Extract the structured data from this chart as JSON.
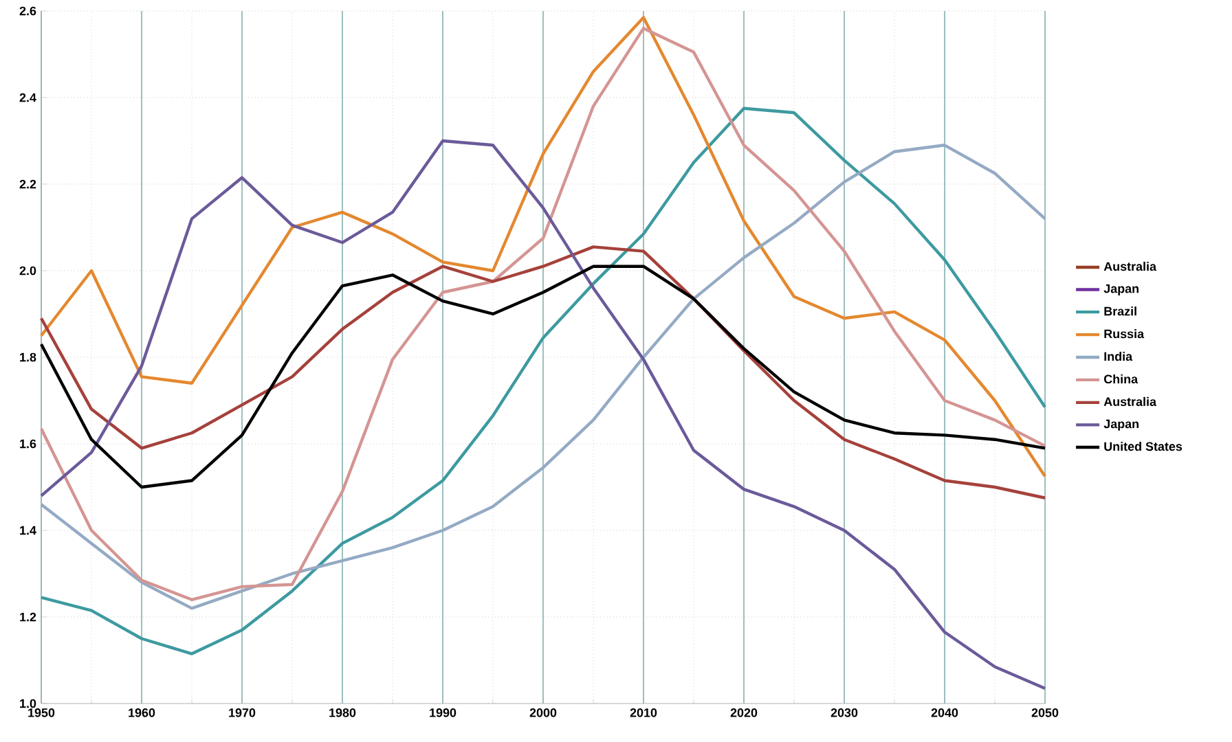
{
  "chart_data": {
    "type": "line",
    "x": [
      1950,
      1955,
      1960,
      1965,
      1970,
      1975,
      1980,
      1985,
      1990,
      1995,
      2000,
      2005,
      2010,
      2015,
      2020,
      2025,
      2030,
      2035,
      2040,
      2045,
      2050
    ],
    "xlim": [
      1950,
      2050
    ],
    "xticks": [
      1950,
      1960,
      1970,
      1980,
      1990,
      2000,
      2010,
      2020,
      2030,
      2040,
      2050
    ],
    "ylim": [
      1.0,
      2.6
    ],
    "yticks": [
      {
        "value": 1.0,
        "label": "1.0"
      },
      1.2,
      1.4,
      1.6,
      1.8,
      {
        "value": 2.0,
        "label": "2.0"
      },
      2.2,
      2.4,
      2.6
    ],
    "grid": true,
    "legend": "right",
    "marker": "none",
    "line_style": "solid",
    "series": [
      {
        "name": "Australia",
        "color": "#953f25",
        "values": [
          null,
          null,
          null,
          null,
          null,
          null,
          null,
          null,
          null,
          null,
          null,
          null,
          null,
          null,
          null,
          null,
          null,
          null,
          null,
          null,
          null
        ]
      },
      {
        "name": "Japan",
        "color": "#7030a0",
        "values": [
          null,
          null,
          null,
          null,
          null,
          null,
          null,
          null,
          null,
          null,
          null,
          null,
          null,
          null,
          null,
          null,
          null,
          null,
          null,
          null,
          null
        ]
      },
      {
        "name": "Brazil",
        "color": "#3d9aa0",
        "values": [
          1.245,
          1.215,
          1.15,
          1.115,
          1.17,
          1.26,
          1.37,
          1.43,
          1.515,
          1.665,
          1.845,
          1.97,
          2.085,
          2.25,
          2.375,
          2.365,
          2.255,
          2.155,
          2.025,
          1.86,
          1.685
        ]
      },
      {
        "name": "Russia",
        "color": "#e4882f",
        "values": [
          1.85,
          2.0,
          1.755,
          1.74,
          1.92,
          2.1,
          2.135,
          2.085,
          2.02,
          2.0,
          2.27,
          2.46,
          2.585,
          2.36,
          2.115,
          1.94,
          1.89,
          1.905,
          1.84,
          1.7,
          1.525
        ]
      },
      {
        "name": "India",
        "color": "#94aac4",
        "values": [
          1.46,
          1.37,
          1.28,
          1.22,
          1.26,
          1.3,
          1.33,
          1.36,
          1.4,
          1.455,
          1.545,
          1.655,
          1.8,
          1.935,
          2.03,
          2.11,
          2.205,
          2.275,
          2.29,
          2.225,
          2.12
        ]
      },
      {
        "name": "China",
        "color": "#d49593",
        "values": [
          1.635,
          1.4,
          1.285,
          1.24,
          1.27,
          1.275,
          1.49,
          1.795,
          1.95,
          1.975,
          2.075,
          2.38,
          2.56,
          2.505,
          2.29,
          2.185,
          2.045,
          1.86,
          1.7,
          1.655,
          1.595
        ]
      },
      {
        "name": "Australia",
        "color": "#a5413b",
        "values": [
          1.89,
          1.68,
          1.59,
          1.625,
          1.69,
          1.755,
          1.865,
          1.95,
          2.01,
          1.975,
          2.01,
          2.055,
          2.045,
          1.935,
          1.815,
          1.7,
          1.61,
          1.565,
          1.515,
          1.5,
          1.475
        ]
      },
      {
        "name": "Japan",
        "color": "#6b5a9a",
        "values": [
          1.48,
          1.58,
          1.78,
          2.12,
          2.215,
          2.105,
          2.065,
          2.135,
          2.3,
          2.29,
          2.145,
          1.96,
          1.795,
          1.585,
          1.495,
          1.455,
          1.4,
          1.31,
          1.165,
          1.085,
          1.035
        ]
      },
      {
        "name": "United States",
        "color": "#000000",
        "values": [
          1.83,
          1.61,
          1.5,
          1.515,
          1.62,
          1.81,
          1.965,
          1.99,
          1.93,
          1.9,
          1.95,
          2.01,
          2.01,
          1.935,
          1.82,
          1.72,
          1.655,
          1.625,
          1.62,
          1.61,
          1.59
        ]
      }
    ]
  }
}
